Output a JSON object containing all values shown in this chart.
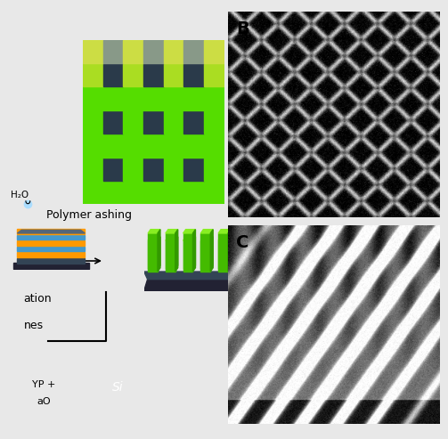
{
  "bg_color": "#e8e8e8",
  "grid_green_bright": "#55dd00",
  "grid_green_mid": "#44cc00",
  "grid_dark": "#2a3a4a",
  "grid_yellow": "#ccdd44",
  "grid_grey": "#889988",
  "polymer_label": "Polymer ashing",
  "h2o_text": "H₂O",
  "label_ation": "ation",
  "label_nes": "nes",
  "arrow_color": "#000000",
  "chip_layers": [
    "#ff9900",
    "#3399cc",
    "#ff9900",
    "#3399cc",
    "#ff9900"
  ],
  "chip_base_color": "#222233",
  "chip_top_color": "#334455",
  "pillar_front": "#44bb00",
  "pillar_top": "#88ee22",
  "pillar_base_dark": "#222233",
  "pillar_base_top": "#334455",
  "legend_orange": "#cc8800",
  "legend_orange_line1": "YP +",
  "legend_orange_line2": "aO",
  "legend_si_color": "#3a4a5a",
  "legend_si_text": "Si",
  "panel_B_label": "B",
  "panel_C_label": "C",
  "white_bg": "#ffffff"
}
